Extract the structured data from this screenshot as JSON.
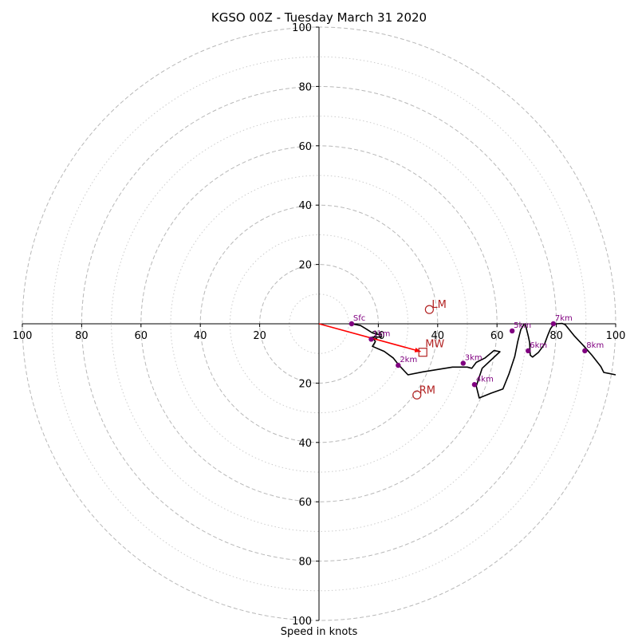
{
  "chart_data": {
    "type": "hodograph",
    "title": "KGSO 00Z - Tuesday March 31 2020",
    "xlabel": "Speed in knots",
    "units": "knots",
    "range": 100,
    "ring_major": [
      20,
      40,
      60,
      80,
      100
    ],
    "ring_minor": [
      10,
      30,
      50,
      70,
      90
    ],
    "x_tick_labels": [
      "100",
      "80",
      "60",
      "40",
      "20",
      "20",
      "40",
      "60",
      "80",
      "100"
    ],
    "x_tick_values": [
      -100,
      -80,
      -60,
      -40,
      -20,
      20,
      40,
      60,
      80,
      100
    ],
    "y_tick_labels": [
      "100",
      "80",
      "60",
      "40",
      "20",
      "20",
      "40",
      "60",
      "80",
      "100"
    ],
    "y_tick_values": [
      100,
      80,
      60,
      40,
      20,
      -20,
      -40,
      -60,
      -80,
      -100
    ],
    "trace_color": "#000000",
    "hodograph_trace": [
      [
        11,
        0
      ],
      [
        14,
        -0.6
      ],
      [
        16,
        -1.8
      ],
      [
        18,
        -3.1
      ],
      [
        20,
        -3.6
      ],
      [
        21,
        -3.5
      ],
      [
        21,
        -4.5
      ],
      [
        18,
        -4.5
      ],
      [
        19,
        -6
      ],
      [
        18,
        -7.6
      ],
      [
        22,
        -9.3
      ],
      [
        25,
        -11.5
      ],
      [
        27,
        -14
      ],
      [
        30,
        -17.2
      ],
      [
        35,
        -16.2
      ],
      [
        40,
        -15.4
      ],
      [
        45,
        -14.6
      ],
      [
        50,
        -14.6
      ],
      [
        51.5,
        -15
      ],
      [
        53,
        -13
      ],
      [
        56,
        -11.5
      ],
      [
        59,
        -9
      ],
      [
        61,
        -9.4
      ],
      [
        55,
        -15
      ],
      [
        53,
        -21
      ],
      [
        54,
        -25
      ],
      [
        58,
        -23.4
      ],
      [
        62,
        -22
      ],
      [
        64,
        -17
      ],
      [
        66,
        -11
      ],
      [
        67,
        -6
      ],
      [
        68,
        -2
      ],
      [
        69,
        -0.3
      ],
      [
        69.5,
        0
      ],
      [
        70,
        -2
      ],
      [
        70.5,
        -4
      ],
      [
        71,
        -6.3
      ],
      [
        71.2,
        -10.6
      ],
      [
        72,
        -11.2
      ],
      [
        74,
        -9.6
      ],
      [
        76,
        -6.9
      ],
      [
        77,
        -4.2
      ],
      [
        78,
        -1.7
      ],
      [
        79,
        -0.3
      ],
      [
        80,
        0
      ],
      [
        82,
        0.1
      ],
      [
        83,
        -0.3
      ],
      [
        86,
        -4
      ],
      [
        89,
        -7.2
      ],
      [
        92,
        -10.6
      ],
      [
        95,
        -14.4
      ],
      [
        96,
        -16.4
      ],
      [
        100,
        -17.2
      ]
    ],
    "height_markers": [
      {
        "label": "Sfc",
        "u": 11,
        "v": 0
      },
      {
        "label": "1km",
        "u": 17.6,
        "v": -5.2
      },
      {
        "label": "2km",
        "u": 26.7,
        "v": -14
      },
      {
        "label": "3km",
        "u": 48.6,
        "v": -13.3
      },
      {
        "label": "4km",
        "u": 52.4,
        "v": -20.5
      },
      {
        "label": "5km",
        "u": 65.1,
        "v": -2.4
      },
      {
        "label": "6km",
        "u": 70.5,
        "v": -9.1
      },
      {
        "label": "7km",
        "u": 79,
        "v": 0
      },
      {
        "label": "8km",
        "u": 89.6,
        "v": -9.1
      }
    ],
    "marker_color": "#800080",
    "storm_motion": {
      "color": "#b22222",
      "LM": {
        "label": "LM",
        "u": 37.2,
        "v": 4.8
      },
      "RM": {
        "label": "RM",
        "u": 33,
        "v": -24
      },
      "MW": {
        "label": "MW",
        "u": 35,
        "v": -9.6
      },
      "arrow_color": "#ff0000"
    },
    "grid": true
  }
}
